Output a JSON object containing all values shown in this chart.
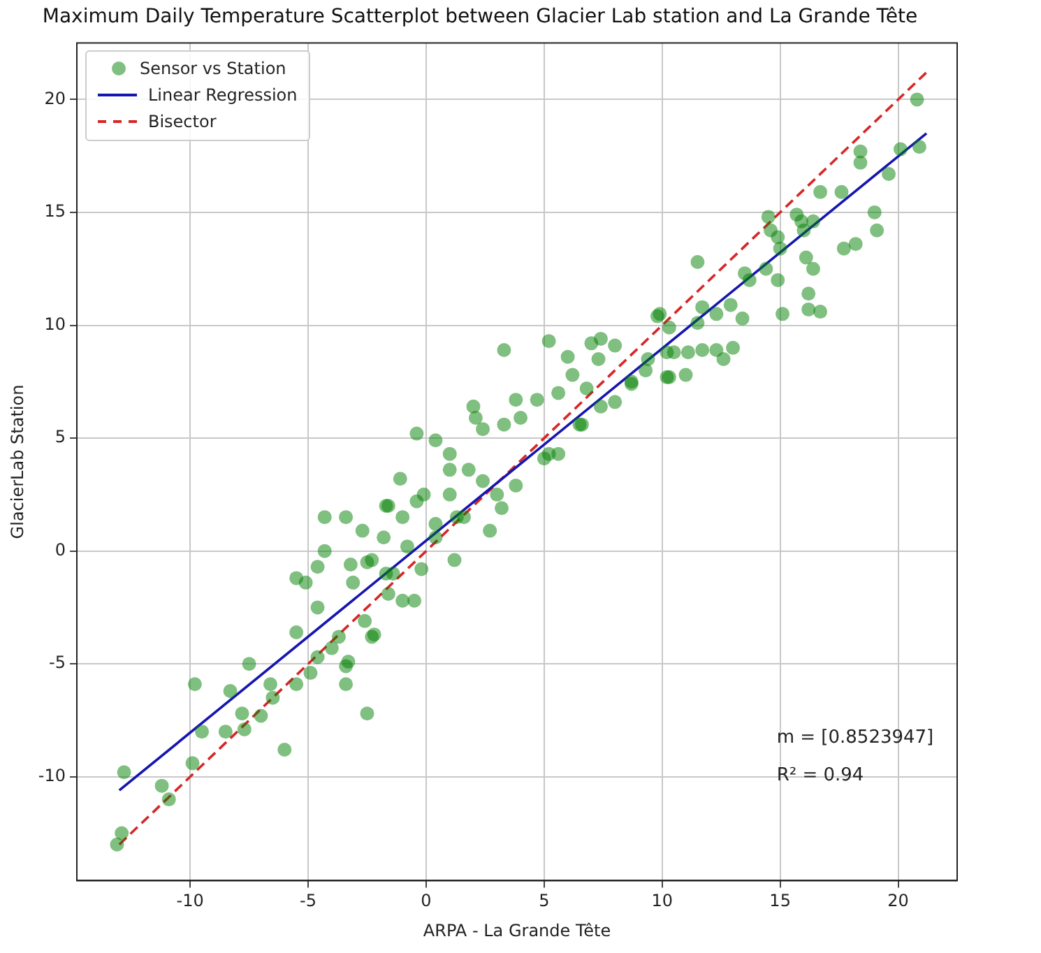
{
  "chart_data": {
    "type": "scatter",
    "title": "Maximum Daily Temperature Scatterplot between Glacier Lab station and La Grande Tête",
    "xlabel": "ARPA - La Grande Tête",
    "ylabel": "GlacierLab Station",
    "xlim": [
      -14.8,
      22.5
    ],
    "ylim": [
      -14.6,
      22.5
    ],
    "xticks": [
      -10,
      -5,
      0,
      5,
      10,
      15,
      20
    ],
    "yticks": [
      -10,
      -5,
      0,
      5,
      10,
      15,
      20
    ],
    "grid": true,
    "legend": "top left",
    "annotations": [
      "m = [0.8523947]",
      "R² = 0.94"
    ],
    "series": [
      {
        "name": "Sensor vs Station",
        "type": "scatter",
        "marker": "circle",
        "color": "#008000",
        "x": [
          -13.1,
          -12.9,
          -12.8,
          -11.2,
          -10.9,
          -9.9,
          -9.8,
          -9.5,
          -8.5,
          -8.3,
          -7.7,
          -7.8,
          -7.0,
          -7.5,
          -6.6,
          -6.5,
          -6.0,
          -5.5,
          -5.5,
          -5.5,
          -5.1,
          -4.9,
          -4.6,
          -4.6,
          -4.3,
          -4.3,
          -3.4,
          -3.4,
          -3.4,
          -2.7,
          -2.5,
          -3.2,
          -3.1,
          -2.3,
          -1.6,
          -1.0,
          -1.8,
          -1.0,
          -0.5,
          -0.4,
          -1.1,
          -0.4,
          -3.7,
          -2.6,
          -2.2,
          -4.0,
          -4.6,
          -1.6,
          -1.4,
          -0.2,
          3.3,
          5.2,
          6.0,
          6.2,
          7.0,
          7.4,
          8.0,
          7.3,
          6.8,
          5.6,
          4.7,
          3.8,
          2.0,
          2.1,
          4.0,
          3.3,
          2.4,
          0.4,
          1.0,
          1.0,
          1.8,
          -1.7,
          -0.1,
          1.0,
          2.4,
          3.0,
          3.8,
          5.2,
          5.6,
          6.5,
          6.6,
          7.4,
          8.0,
          8.7,
          9.3,
          9.8,
          10.2,
          2.7,
          1.3,
          0.4,
          1.2,
          -2.3,
          -3.3,
          -2.5,
          -1.7,
          -0.8,
          0.4,
          3.2,
          1.6,
          5.0,
          20.8,
          20.9,
          20.1,
          18.4,
          18.4,
          19.6,
          16.7,
          17.6,
          19.0,
          19.1,
          18.2,
          17.7,
          15.7,
          15.9,
          16.4,
          14.5,
          14.6,
          14.9,
          15.0,
          16.1,
          16.4,
          16.0,
          14.4,
          14.9,
          13.7,
          13.5,
          11.5,
          16.2,
          16.2,
          16.7,
          15.1,
          13.4,
          12.9,
          12.3,
          11.7,
          11.5,
          9.9,
          10.3,
          13.0,
          12.6,
          12.3,
          11.7,
          11.1,
          10.5,
          10.2,
          9.4,
          11.0,
          10.3,
          8.7
        ],
        "values": [
          -13.0,
          -12.5,
          -9.8,
          -10.4,
          -11.0,
          -9.4,
          -5.9,
          -8.0,
          -8.0,
          -6.2,
          -7.9,
          -7.2,
          -7.3,
          -5.0,
          -5.9,
          -6.5,
          -8.8,
          -5.9,
          -3.6,
          -1.2,
          -1.4,
          -5.4,
          -2.5,
          -0.7,
          1.5,
          0.0,
          -5.9,
          -5.1,
          1.5,
          0.9,
          -7.2,
          -0.6,
          -1.4,
          -0.4,
          2.0,
          1.5,
          0.6,
          -2.2,
          -2.2,
          5.2,
          3.2,
          2.2,
          -3.8,
          -3.1,
          -3.7,
          -4.3,
          -4.7,
          -1.9,
          -1.0,
          -0.8,
          8.9,
          9.3,
          8.6,
          7.8,
          9.2,
          9.4,
          9.1,
          8.5,
          7.2,
          7.0,
          6.7,
          6.7,
          6.4,
          5.9,
          5.9,
          5.6,
          5.4,
          4.9,
          4.3,
          3.6,
          3.6,
          2.0,
          2.5,
          2.5,
          3.1,
          2.5,
          2.9,
          4.3,
          4.3,
          5.6,
          5.6,
          6.4,
          6.6,
          7.4,
          8.0,
          10.4,
          7.7,
          0.9,
          1.5,
          0.6,
          -0.4,
          -3.8,
          -4.9,
          -0.5,
          -1.0,
          0.2,
          1.2,
          1.9,
          1.5,
          4.1,
          20.0,
          17.9,
          17.8,
          17.7,
          17.2,
          16.7,
          15.9,
          15.9,
          15.0,
          14.2,
          13.6,
          13.4,
          14.9,
          14.6,
          14.6,
          14.8,
          14.2,
          13.9,
          13.4,
          13.0,
          12.5,
          14.2,
          12.5,
          12.0,
          12.0,
          12.3,
          12.8,
          11.4,
          10.7,
          10.6,
          10.5,
          10.3,
          10.9,
          10.5,
          10.8,
          10.1,
          10.5,
          9.9,
          9.0,
          8.5,
          8.9,
          8.9,
          8.8,
          8.8,
          8.8,
          8.5,
          7.8,
          7.7,
          7.5
        ]
      },
      {
        "name": "Linear Regression",
        "type": "line",
        "marker": "none",
        "line_style": "solid",
        "color": "#1515b0",
        "x": [
          -13.0,
          21.2
        ],
        "values": [
          -10.6,
          18.5
        ]
      },
      {
        "name": "Bisector",
        "type": "line",
        "marker": "none",
        "line_style": "dashed",
        "color": "#d62728",
        "x": [
          -13.0,
          21.2
        ],
        "values": [
          -13.0,
          21.2
        ]
      }
    ]
  }
}
